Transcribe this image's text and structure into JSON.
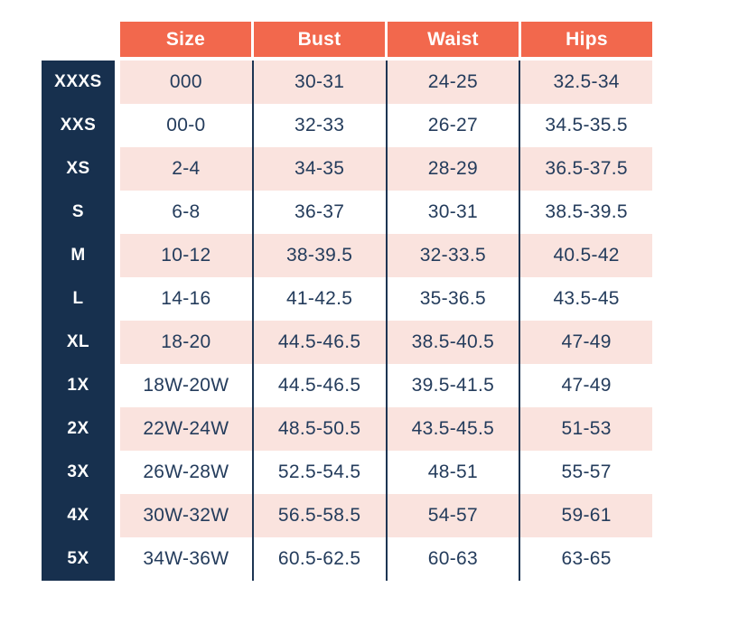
{
  "colors": {
    "header_bg": "#F2684D",
    "header_text": "#FFFFFF",
    "label_column_bg": "#17304E",
    "label_column_text": "#FFFFFF",
    "row_stripe_pink": "#FAE3DE",
    "row_stripe_white": "#FFFFFF",
    "cell_text": "#243C5C",
    "column_divider": "#1D3553"
  },
  "chart_data": {
    "type": "table",
    "columns": [
      "Size",
      "Bust",
      "Waist",
      "Hips"
    ],
    "rows": [
      {
        "label": "XXXS",
        "cells": [
          "000",
          "30-31",
          "24-25",
          "32.5-34"
        ]
      },
      {
        "label": "XXS",
        "cells": [
          "00-0",
          "32-33",
          "26-27",
          "34.5-35.5"
        ]
      },
      {
        "label": "XS",
        "cells": [
          "2-4",
          "34-35",
          "28-29",
          "36.5-37.5"
        ]
      },
      {
        "label": "S",
        "cells": [
          "6-8",
          "36-37",
          "30-31",
          "38.5-39.5"
        ]
      },
      {
        "label": "M",
        "cells": [
          "10-12",
          "38-39.5",
          "32-33.5",
          "40.5-42"
        ]
      },
      {
        "label": "L",
        "cells": [
          "14-16",
          "41-42.5",
          "35-36.5",
          "43.5-45"
        ]
      },
      {
        "label": "XL",
        "cells": [
          "18-20",
          "44.5-46.5",
          "38.5-40.5",
          "47-49"
        ]
      },
      {
        "label": "1X",
        "cells": [
          "18W-20W",
          "44.5-46.5",
          "39.5-41.5",
          "47-49"
        ]
      },
      {
        "label": "2X",
        "cells": [
          "22W-24W",
          "48.5-50.5",
          "43.5-45.5",
          "51-53"
        ]
      },
      {
        "label": "3X",
        "cells": [
          "26W-28W",
          "52.5-54.5",
          "48-51",
          "55-57"
        ]
      },
      {
        "label": "4X",
        "cells": [
          "30W-32W",
          "56.5-58.5",
          "54-57",
          "59-61"
        ]
      },
      {
        "label": "5X",
        "cells": [
          "34W-36W",
          "60.5-62.5",
          "60-63",
          "63-65"
        ]
      }
    ]
  }
}
